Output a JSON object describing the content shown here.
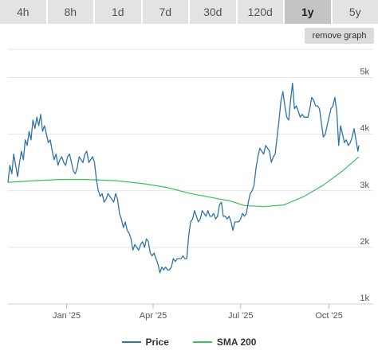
{
  "tabs": [
    {
      "label": "4h",
      "active": false
    },
    {
      "label": "8h",
      "active": false
    },
    {
      "label": "1d",
      "active": false
    },
    {
      "label": "7d",
      "active": false
    },
    {
      "label": "30d",
      "active": false
    },
    {
      "label": "120d",
      "active": false
    },
    {
      "label": "1y",
      "active": true
    },
    {
      "label": "5y",
      "active": false
    }
  ],
  "remove_graph_label": "remove graph",
  "colors": {
    "price": "#2f73a8",
    "sma": "#3dbf5a",
    "grid": "#e4e4e4",
    "axis_text": "#555555"
  },
  "chart_data": {
    "type": "line",
    "x_range": [
      "2024-11-01",
      "2025-11-01"
    ],
    "ylim": [
      1000,
      5500
    ],
    "grid": true,
    "legend_position": "bottom",
    "yticks": [
      {
        "value": 1000,
        "label": "1k"
      },
      {
        "value": 2000,
        "label": "2k"
      },
      {
        "value": 3000,
        "label": "3k"
      },
      {
        "value": 4000,
        "label": "4k"
      },
      {
        "value": 5000,
        "label": "5k"
      }
    ],
    "xticks": [
      {
        "value": "2025-01-01",
        "label": "Jan '25"
      },
      {
        "value": "2025-04-01",
        "label": "Apr '25"
      },
      {
        "value": "2025-07-01",
        "label": "Jul '25"
      },
      {
        "value": "2025-10-01",
        "label": "Oct '25"
      }
    ],
    "series": [
      {
        "name": "Price",
        "color": "#2f73a8",
        "points": [
          [
            "2024-11-01",
            3150
          ],
          [
            "2024-11-03",
            3450
          ],
          [
            "2024-11-05",
            3300
          ],
          [
            "2024-11-07",
            3650
          ],
          [
            "2024-11-09",
            3450
          ],
          [
            "2024-11-11",
            3250
          ],
          [
            "2024-11-13",
            3500
          ],
          [
            "2024-11-15",
            3700
          ],
          [
            "2024-11-17",
            3550
          ],
          [
            "2024-11-19",
            3900
          ],
          [
            "2024-11-21",
            3800
          ],
          [
            "2024-11-23",
            4050
          ],
          [
            "2024-11-25",
            3900
          ],
          [
            "2024-11-27",
            4250
          ],
          [
            "2024-11-29",
            4100
          ],
          [
            "2024-12-01",
            4300
          ],
          [
            "2024-12-03",
            4150
          ],
          [
            "2024-12-05",
            4350
          ],
          [
            "2024-12-07",
            4050
          ],
          [
            "2024-12-09",
            4150
          ],
          [
            "2024-12-11",
            4000
          ],
          [
            "2024-12-13",
            3850
          ],
          [
            "2024-12-15",
            3900
          ],
          [
            "2024-12-17",
            3700
          ],
          [
            "2024-12-19",
            3550
          ],
          [
            "2024-12-21",
            3650
          ],
          [
            "2024-12-23",
            3450
          ],
          [
            "2024-12-25",
            3550
          ],
          [
            "2024-12-27",
            3600
          ],
          [
            "2024-12-29",
            3500
          ],
          [
            "2024-12-31",
            3450
          ],
          [
            "2025-01-02",
            3600
          ],
          [
            "2025-01-04",
            3650
          ],
          [
            "2025-01-06",
            3500
          ],
          [
            "2025-01-08",
            3350
          ],
          [
            "2025-01-10",
            3300
          ],
          [
            "2025-01-12",
            3400
          ],
          [
            "2025-01-14",
            3600
          ],
          [
            "2025-01-16",
            3550
          ],
          [
            "2025-01-18",
            3500
          ],
          [
            "2025-01-20",
            3650
          ],
          [
            "2025-01-22",
            3700
          ],
          [
            "2025-01-24",
            3500
          ],
          [
            "2025-01-26",
            3550
          ],
          [
            "2025-01-28",
            3600
          ],
          [
            "2025-01-30",
            3500
          ],
          [
            "2025-02-01",
            3200
          ],
          [
            "2025-02-03",
            3000
          ],
          [
            "2025-02-05",
            2900
          ],
          [
            "2025-02-07",
            2950
          ],
          [
            "2025-02-09",
            2800
          ],
          [
            "2025-02-11",
            2850
          ],
          [
            "2025-02-13",
            2950
          ],
          [
            "2025-02-15",
            2900
          ],
          [
            "2025-02-17",
            2850
          ],
          [
            "2025-02-19",
            2800
          ],
          [
            "2025-02-21",
            2950
          ],
          [
            "2025-02-23",
            2850
          ],
          [
            "2025-02-25",
            2600
          ],
          [
            "2025-02-27",
            2500
          ],
          [
            "2025-03-01",
            2350
          ],
          [
            "2025-03-03",
            2450
          ],
          [
            "2025-03-05",
            2300
          ],
          [
            "2025-03-07",
            2250
          ],
          [
            "2025-03-09",
            2150
          ],
          [
            "2025-03-11",
            1950
          ],
          [
            "2025-03-13",
            2050
          ],
          [
            "2025-03-15",
            2000
          ],
          [
            "2025-03-17",
            1950
          ],
          [
            "2025-03-19",
            2050
          ],
          [
            "2025-03-21",
            2100
          ],
          [
            "2025-03-23",
            2000
          ],
          [
            "2025-03-25",
            2150
          ],
          [
            "2025-03-27",
            2100
          ],
          [
            "2025-03-29",
            1900
          ],
          [
            "2025-03-31",
            1850
          ],
          [
            "2025-04-02",
            1900
          ],
          [
            "2025-04-04",
            1800
          ],
          [
            "2025-04-06",
            1700
          ],
          [
            "2025-04-08",
            1550
          ],
          [
            "2025-04-10",
            1650
          ],
          [
            "2025-04-12",
            1600
          ],
          [
            "2025-04-14",
            1650
          ],
          [
            "2025-04-16",
            1600
          ],
          [
            "2025-04-18",
            1600
          ],
          [
            "2025-04-20",
            1650
          ],
          [
            "2025-04-22",
            1800
          ],
          [
            "2025-04-24",
            1750
          ],
          [
            "2025-04-26",
            1800
          ],
          [
            "2025-04-28",
            1800
          ],
          [
            "2025-04-30",
            1800
          ],
          [
            "2025-05-02",
            1850
          ],
          [
            "2025-05-04",
            1800
          ],
          [
            "2025-05-06",
            1800
          ],
          [
            "2025-05-08",
            2200
          ],
          [
            "2025-05-10",
            2450
          ],
          [
            "2025-05-12",
            2500
          ],
          [
            "2025-05-14",
            2650
          ],
          [
            "2025-05-16",
            2550
          ],
          [
            "2025-05-18",
            2450
          ],
          [
            "2025-05-20",
            2500
          ],
          [
            "2025-05-22",
            2650
          ],
          [
            "2025-05-24",
            2600
          ],
          [
            "2025-05-26",
            2550
          ],
          [
            "2025-05-28",
            2650
          ],
          [
            "2025-05-30",
            2550
          ],
          [
            "2025-06-01",
            2550
          ],
          [
            "2025-06-03",
            2600
          ],
          [
            "2025-06-05",
            2500
          ],
          [
            "2025-06-07",
            2550
          ],
          [
            "2025-06-09",
            2750
          ],
          [
            "2025-06-11",
            2800
          ],
          [
            "2025-06-13",
            2550
          ],
          [
            "2025-06-15",
            2550
          ],
          [
            "2025-06-17",
            2500
          ],
          [
            "2025-06-19",
            2550
          ],
          [
            "2025-06-21",
            2450
          ],
          [
            "2025-06-23",
            2300
          ],
          [
            "2025-06-25",
            2450
          ],
          [
            "2025-06-27",
            2450
          ],
          [
            "2025-06-29",
            2450
          ],
          [
            "2025-07-01",
            2500
          ],
          [
            "2025-07-03",
            2600
          ],
          [
            "2025-07-05",
            2550
          ],
          [
            "2025-07-07",
            2600
          ],
          [
            "2025-07-09",
            2800
          ],
          [
            "2025-07-11",
            2950
          ],
          [
            "2025-07-13",
            3000
          ],
          [
            "2025-07-15",
            3100
          ],
          [
            "2025-07-17",
            3400
          ],
          [
            "2025-07-19",
            3600
          ],
          [
            "2025-07-21",
            3750
          ],
          [
            "2025-07-23",
            3700
          ],
          [
            "2025-07-25",
            3650
          ],
          [
            "2025-07-27",
            3800
          ],
          [
            "2025-07-29",
            3750
          ],
          [
            "2025-07-31",
            3700
          ],
          [
            "2025-08-02",
            3500
          ],
          [
            "2025-08-04",
            3600
          ],
          [
            "2025-08-06",
            3650
          ],
          [
            "2025-08-08",
            3950
          ],
          [
            "2025-08-10",
            4250
          ],
          [
            "2025-08-12",
            4600
          ],
          [
            "2025-08-14",
            4750
          ],
          [
            "2025-08-16",
            4500
          ],
          [
            "2025-08-18",
            4300
          ],
          [
            "2025-08-20",
            4250
          ],
          [
            "2025-08-22",
            4600
          ],
          [
            "2025-08-24",
            4900
          ],
          [
            "2025-08-26",
            4450
          ],
          [
            "2025-08-28",
            4500
          ],
          [
            "2025-08-30",
            4400
          ],
          [
            "2025-09-01",
            4300
          ],
          [
            "2025-09-03",
            4350
          ],
          [
            "2025-09-05",
            4300
          ],
          [
            "2025-09-07",
            4300
          ],
          [
            "2025-09-09",
            4300
          ],
          [
            "2025-09-11",
            4450
          ],
          [
            "2025-09-13",
            4650
          ],
          [
            "2025-09-15",
            4600
          ],
          [
            "2025-09-17",
            4500
          ],
          [
            "2025-09-19",
            4500
          ],
          [
            "2025-09-21",
            4450
          ],
          [
            "2025-09-23",
            4200
          ],
          [
            "2025-09-25",
            3950
          ],
          [
            "2025-09-27",
            4000
          ],
          [
            "2025-09-29",
            4150
          ],
          [
            "2025-10-01",
            4300
          ],
          [
            "2025-10-03",
            4450
          ],
          [
            "2025-10-05",
            4500
          ],
          [
            "2025-10-07",
            4650
          ],
          [
            "2025-10-09",
            4400
          ],
          [
            "2025-10-11",
            3800
          ],
          [
            "2025-10-13",
            4150
          ],
          [
            "2025-10-15",
            4000
          ],
          [
            "2025-10-17",
            3850
          ],
          [
            "2025-10-19",
            3900
          ],
          [
            "2025-10-21",
            3800
          ],
          [
            "2025-10-23",
            3850
          ],
          [
            "2025-10-25",
            3950
          ],
          [
            "2025-10-27",
            4100
          ],
          [
            "2025-10-29",
            3900
          ],
          [
            "2025-10-31",
            3700
          ],
          [
            "2025-11-01",
            3800
          ]
        ]
      },
      {
        "name": "SMA 200",
        "color": "#3dbf5a",
        "points": [
          [
            "2024-11-01",
            3150
          ],
          [
            "2024-12-01",
            3180
          ],
          [
            "2024-12-25",
            3200
          ],
          [
            "2025-01-20",
            3200
          ],
          [
            "2025-02-20",
            3180
          ],
          [
            "2025-03-20",
            3130
          ],
          [
            "2025-04-15",
            3060
          ],
          [
            "2025-05-10",
            2950
          ],
          [
            "2025-06-01",
            2880
          ],
          [
            "2025-06-20",
            2820
          ],
          [
            "2025-07-05",
            2740
          ],
          [
            "2025-07-25",
            2720
          ],
          [
            "2025-08-15",
            2750
          ],
          [
            "2025-09-05",
            2900
          ],
          [
            "2025-09-25",
            3100
          ],
          [
            "2025-10-15",
            3350
          ],
          [
            "2025-11-01",
            3600
          ]
        ]
      }
    ]
  }
}
